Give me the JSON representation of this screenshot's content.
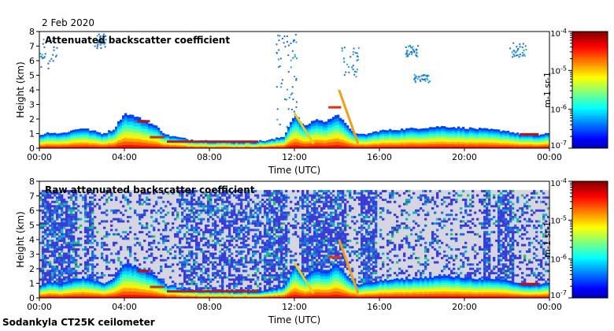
{
  "date": "2 Feb 2020",
  "instrument": "Sodankyla CT25K ceilometer",
  "chart_data": [
    {
      "type": "heatmap",
      "title": "Attenuated backscatter coefficient",
      "xlabel": "Time (UTC)",
      "ylabel": "Height (km)",
      "xticks": [
        "00:00",
        "04:00",
        "08:00",
        "12:00",
        "16:00",
        "20:00",
        "00:00"
      ],
      "xlim": [
        0,
        24
      ],
      "ylim": [
        0,
        8
      ],
      "yticks": [
        "0",
        "1",
        "2",
        "3",
        "4",
        "5",
        "6",
        "7",
        "8"
      ],
      "colorbar": {
        "label": "m-1 sr-1",
        "ticks": [
          "10-7",
          "10-6",
          "10-5",
          "10-4"
        ],
        "range": [
          -7,
          -4
        ]
      },
      "noise": false
    },
    {
      "type": "heatmap",
      "title": "Raw attenuated backscatter coefficient",
      "xlabel": "Time (UTC)",
      "ylabel": "Height (km)",
      "xticks": [
        "00:00",
        "04:00",
        "08:00",
        "12:00",
        "16:00",
        "20:00",
        "00:00"
      ],
      "xlim": [
        0,
        24
      ],
      "ylim": [
        0,
        8
      ],
      "yticks": [
        "0",
        "1",
        "2",
        "3",
        "4",
        "5",
        "6",
        "7",
        "8"
      ],
      "colorbar": {
        "label": "m-1 sr-1",
        "ticks": [
          "10-7",
          "10-6",
          "10-5",
          "10-4"
        ],
        "range": [
          -7,
          -4
        ]
      },
      "noise": true
    }
  ],
  "boundary_layer": {
    "hours": [
      0,
      0.5,
      1,
      1.5,
      2,
      2.5,
      3,
      3.5,
      4,
      4.5,
      5,
      5.5,
      6,
      7,
      8,
      9,
      10,
      10.5,
      11,
      11.5,
      12,
      12.5,
      13,
      13.5,
      14,
      14.5,
      15,
      15.5,
      16,
      17,
      18,
      19,
      20,
      21,
      22,
      22.5,
      23,
      23.5,
      24
    ],
    "top_km": [
      0.9,
      1.1,
      1.0,
      1.2,
      1.4,
      1.2,
      1.0,
      1.3,
      2.4,
      2.2,
      1.9,
      1.5,
      0.9,
      0.6,
      0.5,
      0.45,
      0.45,
      0.5,
      0.6,
      0.8,
      2.3,
      1.5,
      2.0,
      1.8,
      2.4,
      1.5,
      0.9,
      1.0,
      1.2,
      1.3,
      1.4,
      1.5,
      1.4,
      1.3,
      1.2,
      1.0,
      0.9,
      0.9,
      1.0
    ]
  }
}
